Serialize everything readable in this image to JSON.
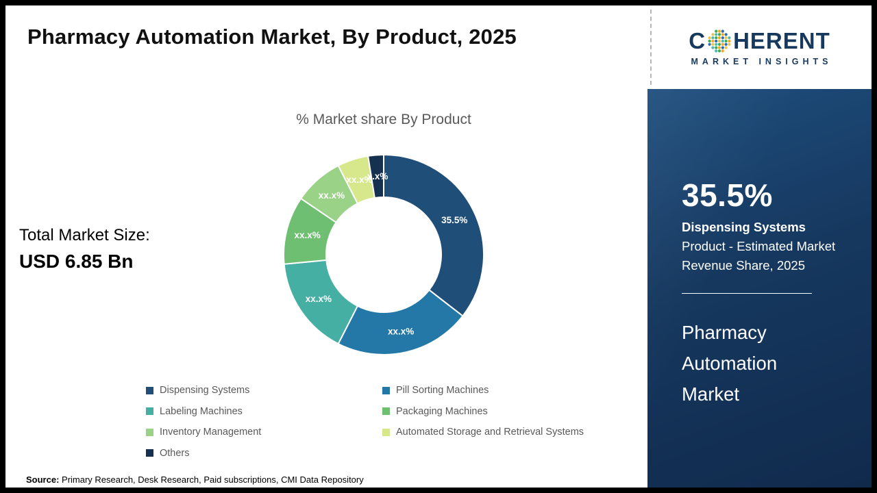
{
  "page": {
    "title": "Pharmacy Automation Market, By Product, 2025"
  },
  "logo": {
    "word_start": "C",
    "word_rest": "HERENT",
    "subtitle": "MARKET INSIGHTS"
  },
  "chart_data": {
    "type": "donut",
    "title": "% Market share By Product",
    "segments": [
      {
        "label": "Dispensing Systems",
        "value": 35.5,
        "display": "35.5%",
        "color": "#1F4E79"
      },
      {
        "label": "Pill Sorting Machines",
        "value": 22.0,
        "display": "xx.x%",
        "color": "#2378A7"
      },
      {
        "label": "Labeling Machines",
        "value": 16.0,
        "display": "xx.x%",
        "color": "#45AFA4"
      },
      {
        "label": "Packaging Machines",
        "value": 11.0,
        "display": "xx.x%",
        "color": "#6FBF72"
      },
      {
        "label": "Inventory Management",
        "value": 8.0,
        "display": "xx.x%",
        "color": "#9AD287"
      },
      {
        "label": "Automated Storage and Retrieval Systems",
        "value": 5.0,
        "display": "xx.x%",
        "color": "#D7E78C"
      },
      {
        "label": "Others",
        "value": 2.5,
        "display": "x.x%",
        "color": "#16304F"
      }
    ],
    "legend_columns": [
      [
        0,
        2,
        4,
        6
      ],
      [
        1,
        3,
        5
      ]
    ]
  },
  "total_market": {
    "label": "Total Market Size:",
    "value": "USD 6.85 Bn"
  },
  "sidebar": {
    "stat_value": "35.5%",
    "stat_label": "Dispensing Systems",
    "stat_desc": "Product - Estimated Market Revenue Share, 2025",
    "market_name": "Pharmacy Automation Market"
  },
  "source": {
    "label": "Source:",
    "text": "Primary Research, Desk Research, Paid subscriptions, CMI Data Repository"
  }
}
